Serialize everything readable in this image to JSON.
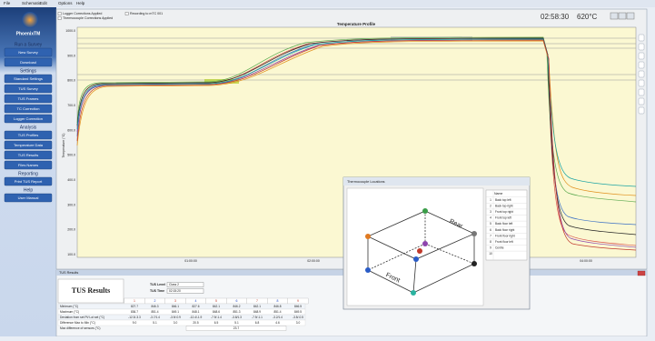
{
  "menu": [
    "File",
    "Schematic",
    "Edit",
    "Options",
    "Help"
  ],
  "sidebar": {
    "logo": "PhoenixTM",
    "sections": [
      {
        "title": "Run a Survey",
        "buttons": [
          "New Survey",
          "Download"
        ]
      },
      {
        "title": "Settings",
        "buttons": [
          "Standard Settings",
          "TUS Survey",
          "TUS Frames",
          "TC Correction",
          "Logger Correction"
        ]
      },
      {
        "title": "Analysis",
        "buttons": [
          "TUS Profiles",
          "Temperature Data",
          "TUS Results",
          "Files Names"
        ]
      },
      {
        "title": "Reporting",
        "buttons": [
          "Print TUS Report"
        ]
      },
      {
        "title": "Help",
        "buttons": [
          "User Manual"
        ]
      }
    ]
  },
  "plot": {
    "checks": [
      "Logger Corrections Applied",
      "Thermocouple Corrections Applied",
      "Recording to mTC 001"
    ],
    "title": "Temperature Profile",
    "clock": "02:58:30",
    "temperature": "620°C",
    "y_axis_label": "Temperature (°C)",
    "yticks": [
      "1000.0",
      "900.0",
      "800.0",
      "700.0",
      "600.0",
      "500.0",
      "400.0",
      "300.0",
      "200.0",
      "100.0"
    ],
    "xticks": [
      "01:00:00",
      "02:00:00",
      "03:00:00",
      "04:00:00"
    ]
  },
  "results": {
    "panel_title": "TUS Results",
    "heading": "TUS Results",
    "fields": [
      {
        "label": "TUS Level",
        "value": "Class 2"
      },
      {
        "label": "TUS Time",
        "value": "02:15:20"
      }
    ],
    "columns": [
      "1",
      "2",
      "3",
      "4",
      "5",
      "6",
      "7",
      "8",
      "9"
    ],
    "rows": [
      {
        "label": "Minimum (°C)",
        "values": [
          "827.7",
          "846.3",
          "846.1",
          "827.6",
          "842.1",
          "846.2",
          "842.1",
          "846.8",
          "846.5"
        ]
      },
      {
        "label": "Maximum (°C)",
        "values": [
          "836.7",
          "851.4",
          "849.1",
          "848.1",
          "848.6",
          "851.3",
          "848.9",
          "851.4",
          "849.5"
        ]
      },
      {
        "label": "Deviation from set Pt/ Lot set (°C)",
        "values": [
          "-12.3/-3.3",
          "-3.7/1.4",
          "-3.9/-0.9",
          "-12.4/-1.9",
          "-7.9/-1.4",
          "-3.8/1.3",
          "-7.9/-1.1",
          "-3.2/1.4",
          "-3.5/-0.5"
        ]
      },
      {
        "label": "Difference Max to Min (°C)",
        "values": [
          "9.0",
          "5.1",
          "3.0",
          "20.5",
          "6.5",
          "5.1",
          "6.8",
          "4.6",
          "3.0"
        ]
      }
    ],
    "summary": {
      "label": "Max difference of sensors (°C)",
      "value": "23.7"
    }
  },
  "popup": {
    "title": "Thermocouple Locations",
    "rear": "Rear",
    "front": "Front",
    "table_header": "Name",
    "rows": [
      [
        "1",
        "Back top left"
      ],
      [
        "2",
        "Back top right"
      ],
      [
        "3",
        "Front top right"
      ],
      [
        "4",
        "Front top left"
      ],
      [
        "5",
        "Back floor left"
      ],
      [
        "6",
        "Back floor right"
      ],
      [
        "7",
        "Front floor right"
      ],
      [
        "8",
        "Front floor left"
      ],
      [
        "9",
        "Centre"
      ],
      [
        "10",
        ""
      ]
    ]
  }
}
